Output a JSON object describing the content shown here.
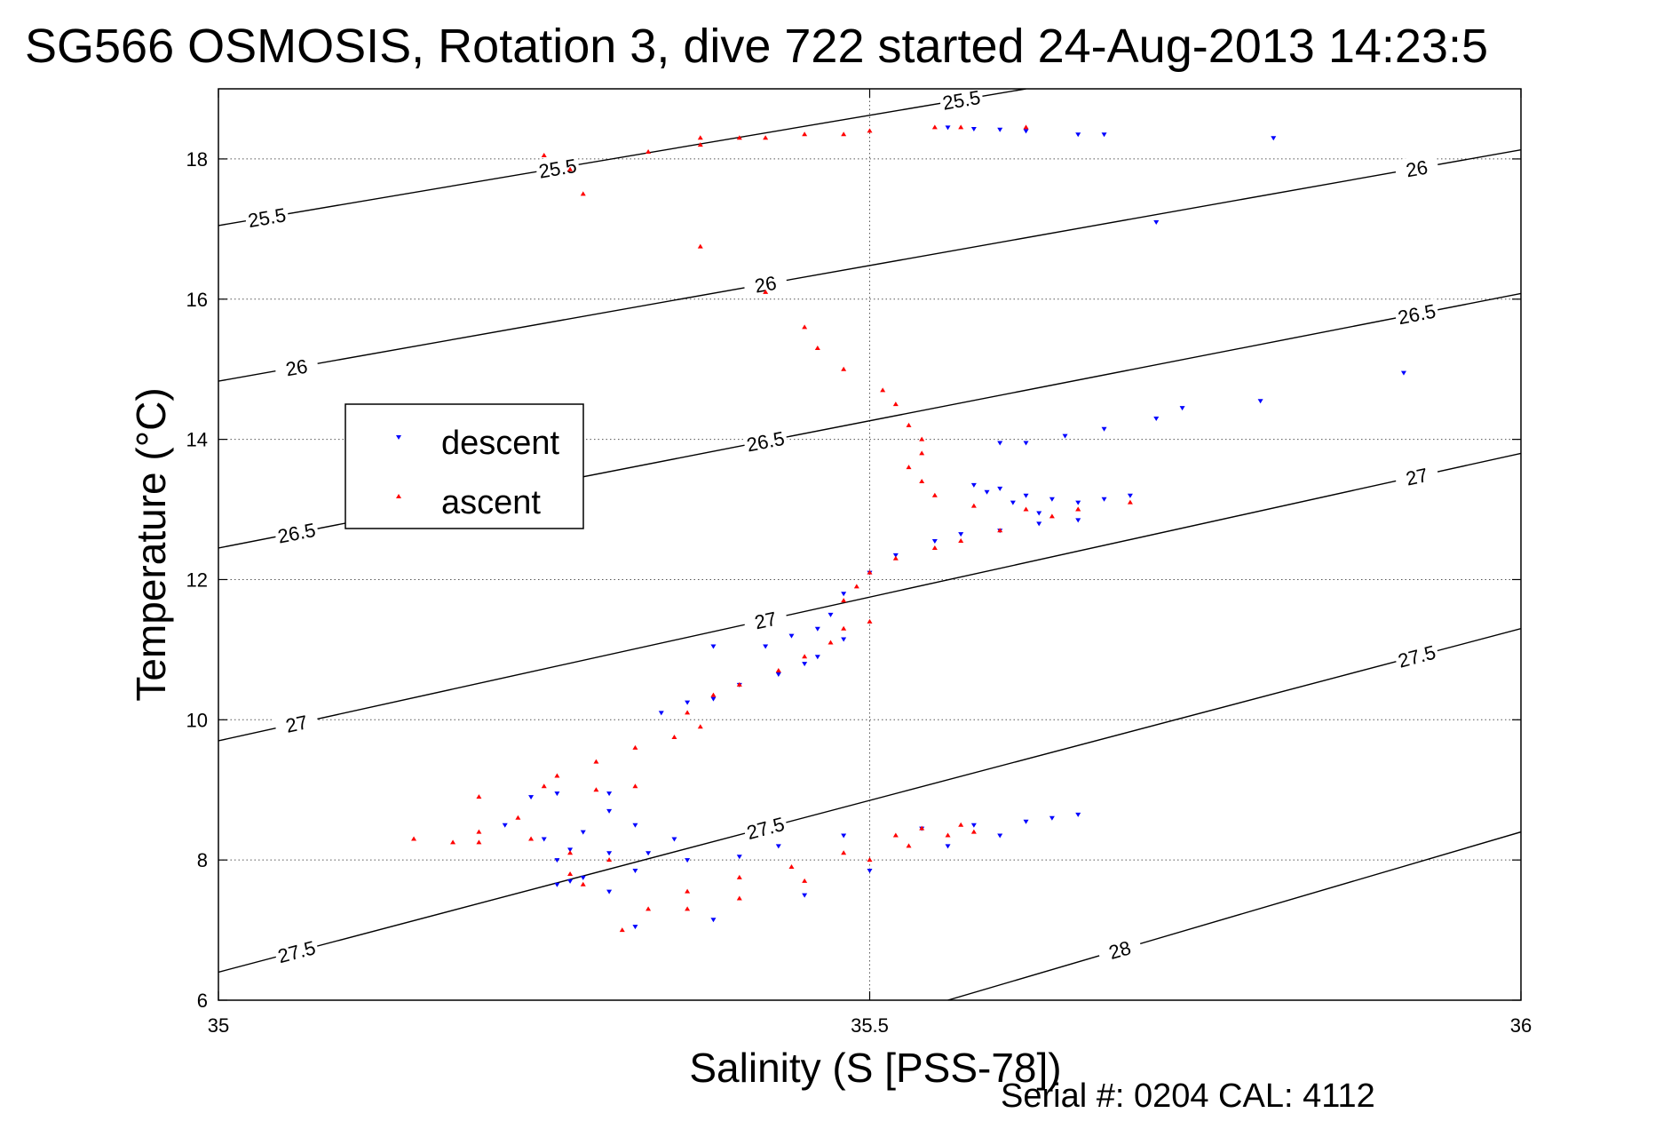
{
  "chart_data": {
    "type": "scatter",
    "title": "SG566 OSMOSIS, Rotation 3, dive 722 started 24-Aug-2013 14:23:5",
    "xlabel": "Salinity (S [PSS-78])",
    "ylabel": "Temperature (°C)",
    "xlim": [
      35,
      36
    ],
    "ylim": [
      6,
      19
    ],
    "x_ticks": [
      35,
      35.5,
      36
    ],
    "x_tick_labels": [
      "35",
      "35.5",
      "36"
    ],
    "y_ticks": [
      6,
      8,
      10,
      12,
      14,
      16,
      18
    ],
    "y_tick_labels": [
      "6",
      "8",
      "10",
      "12",
      "14",
      "16",
      "18"
    ],
    "grid": true,
    "legend_position": "center-left",
    "footer": "Serial #: 0204  CAL: 4112",
    "density_contours": [
      {
        "sigma": 25.5,
        "label": "25.5",
        "points": [
          [
            35,
            17.05
          ],
          [
            35.62,
            19.0
          ]
        ]
      },
      {
        "sigma": 26,
        "label": "26",
        "points": [
          [
            35,
            14.83
          ],
          [
            36,
            18.13
          ]
        ]
      },
      {
        "sigma": 26.5,
        "label": "26.5",
        "points": [
          [
            35,
            12.45
          ],
          [
            36,
            16.08
          ]
        ]
      },
      {
        "sigma": 27,
        "label": "27",
        "points": [
          [
            35,
            9.7
          ],
          [
            36,
            13.8
          ]
        ]
      },
      {
        "sigma": 27.5,
        "label": "27.5",
        "points": [
          [
            35,
            6.4
          ],
          [
            36,
            11.3
          ]
        ]
      },
      {
        "sigma": 28,
        "label": "28",
        "points": [
          [
            35.56,
            6.0
          ],
          [
            36,
            8.4
          ]
        ]
      }
    ],
    "series": [
      {
        "name": "descent",
        "marker": "triangle-down",
        "color": "#0000ff",
        "points": [
          [
            35.56,
            18.45
          ],
          [
            35.58,
            18.43
          ],
          [
            35.6,
            18.42
          ],
          [
            35.62,
            18.4
          ],
          [
            35.66,
            18.35
          ],
          [
            35.68,
            18.35
          ],
          [
            35.81,
            18.3
          ],
          [
            35.72,
            17.1
          ],
          [
            35.91,
            14.95
          ],
          [
            35.8,
            14.55
          ],
          [
            35.74,
            14.45
          ],
          [
            35.72,
            14.3
          ],
          [
            35.68,
            14.15
          ],
          [
            35.65,
            14.05
          ],
          [
            35.62,
            13.95
          ],
          [
            35.6,
            13.95
          ],
          [
            35.7,
            13.2
          ],
          [
            35.68,
            13.15
          ],
          [
            35.66,
            13.1
          ],
          [
            35.64,
            13.15
          ],
          [
            35.62,
            13.2
          ],
          [
            35.6,
            13.3
          ],
          [
            35.58,
            13.35
          ],
          [
            35.59,
            13.25
          ],
          [
            35.61,
            13.1
          ],
          [
            35.63,
            12.95
          ],
          [
            35.66,
            12.85
          ],
          [
            35.63,
            12.8
          ],
          [
            35.6,
            12.7
          ],
          [
            35.57,
            12.65
          ],
          [
            35.55,
            12.55
          ],
          [
            35.52,
            12.35
          ],
          [
            35.5,
            12.1
          ],
          [
            35.48,
            11.8
          ],
          [
            35.47,
            11.5
          ],
          [
            35.46,
            11.3
          ],
          [
            35.48,
            11.15
          ],
          [
            35.46,
            10.9
          ],
          [
            35.45,
            10.8
          ],
          [
            35.43,
            10.65
          ],
          [
            35.4,
            10.5
          ],
          [
            35.38,
            10.3
          ],
          [
            35.36,
            10.25
          ],
          [
            35.34,
            10.1
          ],
          [
            35.38,
            11.05
          ],
          [
            35.42,
            11.05
          ],
          [
            35.44,
            11.2
          ],
          [
            35.3,
            8.7
          ],
          [
            35.32,
            8.5
          ],
          [
            35.28,
            8.4
          ],
          [
            35.25,
            8.3
          ],
          [
            35.22,
            8.5
          ],
          [
            35.26,
            8.95
          ],
          [
            35.3,
            8.95
          ],
          [
            35.24,
            8.9
          ],
          [
            35.27,
            8.15
          ],
          [
            35.3,
            8.1
          ],
          [
            35.26,
            8.0
          ],
          [
            35.32,
            7.85
          ],
          [
            35.28,
            7.75
          ],
          [
            35.26,
            7.65
          ],
          [
            35.3,
            7.55
          ],
          [
            35.27,
            7.7
          ],
          [
            35.32,
            7.05
          ],
          [
            35.38,
            7.15
          ],
          [
            35.45,
            7.5
          ],
          [
            35.5,
            7.85
          ],
          [
            35.56,
            8.2
          ],
          [
            35.6,
            8.35
          ],
          [
            35.64,
            8.6
          ],
          [
            35.66,
            8.65
          ],
          [
            35.62,
            8.55
          ],
          [
            35.58,
            8.5
          ],
          [
            35.54,
            8.45
          ],
          [
            35.48,
            8.35
          ],
          [
            35.43,
            8.2
          ],
          [
            35.4,
            8.05
          ],
          [
            35.36,
            8.0
          ],
          [
            35.33,
            8.1
          ],
          [
            35.35,
            8.3
          ]
        ]
      },
      {
        "name": "ascent",
        "marker": "triangle-up",
        "color": "#ff0000",
        "points": [
          [
            35.25,
            18.05
          ],
          [
            35.27,
            17.85
          ],
          [
            35.28,
            17.5
          ],
          [
            35.33,
            18.1
          ],
          [
            35.37,
            18.2
          ],
          [
            35.37,
            18.3
          ],
          [
            35.4,
            18.3
          ],
          [
            35.42,
            18.3
          ],
          [
            35.45,
            18.35
          ],
          [
            35.48,
            18.35
          ],
          [
            35.5,
            18.4
          ],
          [
            35.55,
            18.45
          ],
          [
            35.57,
            18.45
          ],
          [
            35.62,
            18.45
          ],
          [
            35.37,
            16.75
          ],
          [
            35.42,
            16.1
          ],
          [
            35.45,
            15.6
          ],
          [
            35.46,
            15.3
          ],
          [
            35.48,
            15.0
          ],
          [
            35.51,
            14.7
          ],
          [
            35.52,
            14.5
          ],
          [
            35.53,
            14.2
          ],
          [
            35.54,
            14.0
          ],
          [
            35.54,
            13.8
          ],
          [
            35.53,
            13.6
          ],
          [
            35.54,
            13.4
          ],
          [
            35.55,
            13.2
          ],
          [
            35.58,
            13.05
          ],
          [
            35.62,
            13.0
          ],
          [
            35.66,
            13.0
          ],
          [
            35.7,
            13.1
          ],
          [
            35.66,
            13.0
          ],
          [
            35.64,
            12.9
          ],
          [
            35.6,
            12.7
          ],
          [
            35.57,
            12.55
          ],
          [
            35.55,
            12.45
          ],
          [
            35.52,
            12.3
          ],
          [
            35.5,
            12.1
          ],
          [
            35.49,
            11.9
          ],
          [
            35.48,
            11.7
          ],
          [
            35.5,
            11.4
          ],
          [
            35.48,
            11.3
          ],
          [
            35.47,
            11.1
          ],
          [
            35.45,
            10.9
          ],
          [
            35.43,
            10.7
          ],
          [
            35.4,
            10.5
          ],
          [
            35.38,
            10.35
          ],
          [
            35.36,
            10.1
          ],
          [
            35.37,
            9.9
          ],
          [
            35.35,
            9.75
          ],
          [
            35.32,
            9.6
          ],
          [
            35.29,
            9.4
          ],
          [
            35.26,
            9.2
          ],
          [
            35.25,
            9.05
          ],
          [
            35.29,
            9.0
          ],
          [
            35.32,
            9.05
          ],
          [
            35.2,
            8.9
          ],
          [
            35.23,
            8.6
          ],
          [
            35.2,
            8.4
          ],
          [
            35.18,
            8.25
          ],
          [
            35.15,
            8.3
          ],
          [
            35.2,
            8.25
          ],
          [
            35.24,
            8.3
          ],
          [
            35.27,
            8.1
          ],
          [
            35.3,
            8.0
          ],
          [
            35.27,
            7.8
          ],
          [
            35.28,
            7.65
          ],
          [
            35.31,
            7.0
          ],
          [
            35.36,
            7.3
          ],
          [
            35.4,
            7.45
          ],
          [
            35.45,
            7.7
          ],
          [
            35.5,
            8.0
          ],
          [
            35.53,
            8.2
          ],
          [
            35.56,
            8.35
          ],
          [
            35.58,
            8.4
          ],
          [
            35.57,
            8.5
          ],
          [
            35.54,
            8.45
          ],
          [
            35.52,
            8.35
          ],
          [
            35.48,
            8.1
          ],
          [
            35.44,
            7.9
          ],
          [
            35.4,
            7.75
          ],
          [
            35.36,
            7.55
          ],
          [
            35.33,
            7.3
          ]
        ]
      }
    ]
  }
}
